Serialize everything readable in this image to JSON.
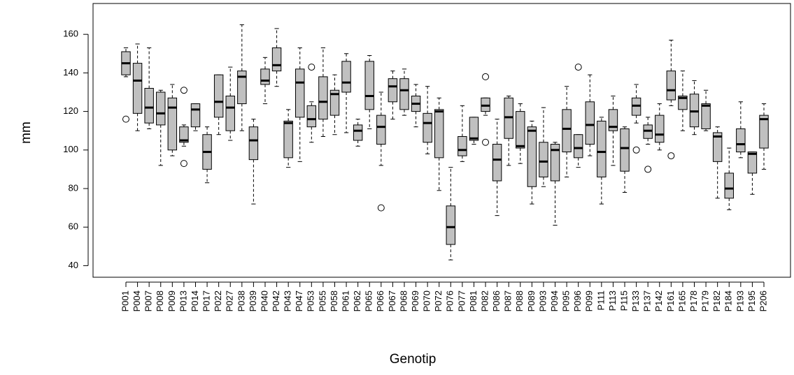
{
  "chart_data": {
    "type": "boxplot",
    "x_label": "Genotip",
    "y_label": "mm",
    "categories": [
      "P001",
      "P004",
      "P007",
      "P008",
      "P009",
      "P013",
      "P014",
      "P017",
      "P022",
      "P027",
      "P038",
      "P039",
      "P040",
      "P042",
      "P043",
      "P047",
      "P053",
      "P055",
      "P058",
      "P061",
      "P062",
      "P065",
      "P066",
      "P067",
      "P068",
      "P069",
      "P070",
      "P072",
      "P076",
      "P077",
      "P081",
      "P082",
      "P086",
      "P087",
      "P088",
      "P089",
      "P093",
      "P094",
      "P095",
      "P096",
      "P099",
      "P111",
      "P113",
      "P115",
      "P133",
      "P137",
      "P142",
      "P161",
      "P165",
      "P178",
      "P179",
      "P182",
      "P184",
      "P193",
      "P195",
      "P206"
    ],
    "whisker_low": [
      138,
      110,
      111,
      92,
      97,
      102,
      110,
      83,
      108,
      105,
      110,
      72,
      124,
      133,
      91,
      94,
      104,
      107,
      108,
      109,
      102,
      111,
      92,
      116,
      118,
      112,
      98,
      79,
      43,
      94,
      103,
      118,
      66,
      92,
      93,
      72,
      81,
      61,
      86,
      91,
      97,
      72,
      92,
      78,
      114,
      103,
      100,
      123,
      110,
      108,
      110,
      75,
      69,
      96,
      77,
      90
    ],
    "q1": [
      139,
      119,
      114,
      113,
      100,
      104,
      112,
      90,
      117,
      110,
      124,
      95,
      134,
      141,
      96,
      117,
      112,
      116,
      118,
      130,
      105,
      121,
      103,
      125,
      121,
      120,
      104,
      96,
      51,
      97,
      105,
      120,
      84,
      106,
      101,
      81,
      86,
      84,
      99,
      96,
      103,
      86,
      110,
      89,
      118,
      106,
      104,
      126,
      121,
      112,
      111,
      94,
      75,
      99,
      88,
      101
    ],
    "median": [
      145,
      136,
      122,
      119,
      122,
      105,
      121,
      99,
      125,
      122,
      138,
      105,
      136,
      144,
      114,
      135,
      116,
      125,
      129,
      135,
      110,
      128,
      112,
      133,
      131,
      124,
      114,
      120,
      60,
      100,
      106,
      123,
      95,
      117,
      102,
      110,
      94,
      100,
      111,
      101,
      113,
      99,
      112,
      101,
      123,
      110,
      108,
      131,
      127,
      120,
      123,
      107,
      80,
      103,
      98,
      116
    ],
    "q3": [
      151,
      145,
      132,
      130,
      127,
      112,
      124,
      108,
      139,
      128,
      141,
      112,
      142,
      153,
      115,
      142,
      123,
      138,
      131,
      146,
      113,
      146,
      118,
      137,
      137,
      128,
      119,
      121,
      71,
      107,
      117,
      127,
      103,
      127,
      120,
      112,
      104,
      103,
      121,
      108,
      125,
      115,
      121,
      111,
      127,
      113,
      118,
      141,
      128,
      129,
      124,
      109,
      88,
      111,
      99,
      118
    ],
    "whisker_high": [
      153,
      155,
      153,
      131,
      134,
      113,
      124,
      112,
      139,
      143,
      165,
      116,
      148,
      163,
      121,
      153,
      125,
      153,
      139,
      150,
      116,
      149,
      130,
      141,
      142,
      134,
      133,
      127,
      91,
      123,
      117,
      127,
      116,
      128,
      124,
      115,
      122,
      104,
      133,
      108,
      139,
      117,
      128,
      112,
      134,
      117,
      124,
      157,
      141,
      136,
      131,
      112,
      101,
      125,
      99,
      124
    ],
    "outliers": [
      [
        116
      ],
      [],
      [],
      [],
      [],
      [
        131,
        93
      ],
      [],
      [],
      [],
      [],
      [],
      [],
      [],
      [],
      [],
      [],
      [
        143
      ],
      [],
      [],
      [],
      [],
      [],
      [
        70
      ],
      [],
      [],
      [],
      [],
      [],
      [],
      [],
      [],
      [
        138,
        104
      ],
      [],
      [],
      [],
      [],
      [],
      [],
      [],
      [
        143
      ],
      [],
      [],
      [],
      [],
      [
        100
      ],
      [
        90
      ],
      [],
      [
        97
      ],
      [],
      [],
      [],
      [],
      [],
      [],
      [],
      []
    ],
    "color": "#c0c0c0",
    "ylim": [
      34,
      176
    ],
    "yticks": [
      40,
      60,
      80,
      100,
      120,
      140,
      160
    ]
  }
}
